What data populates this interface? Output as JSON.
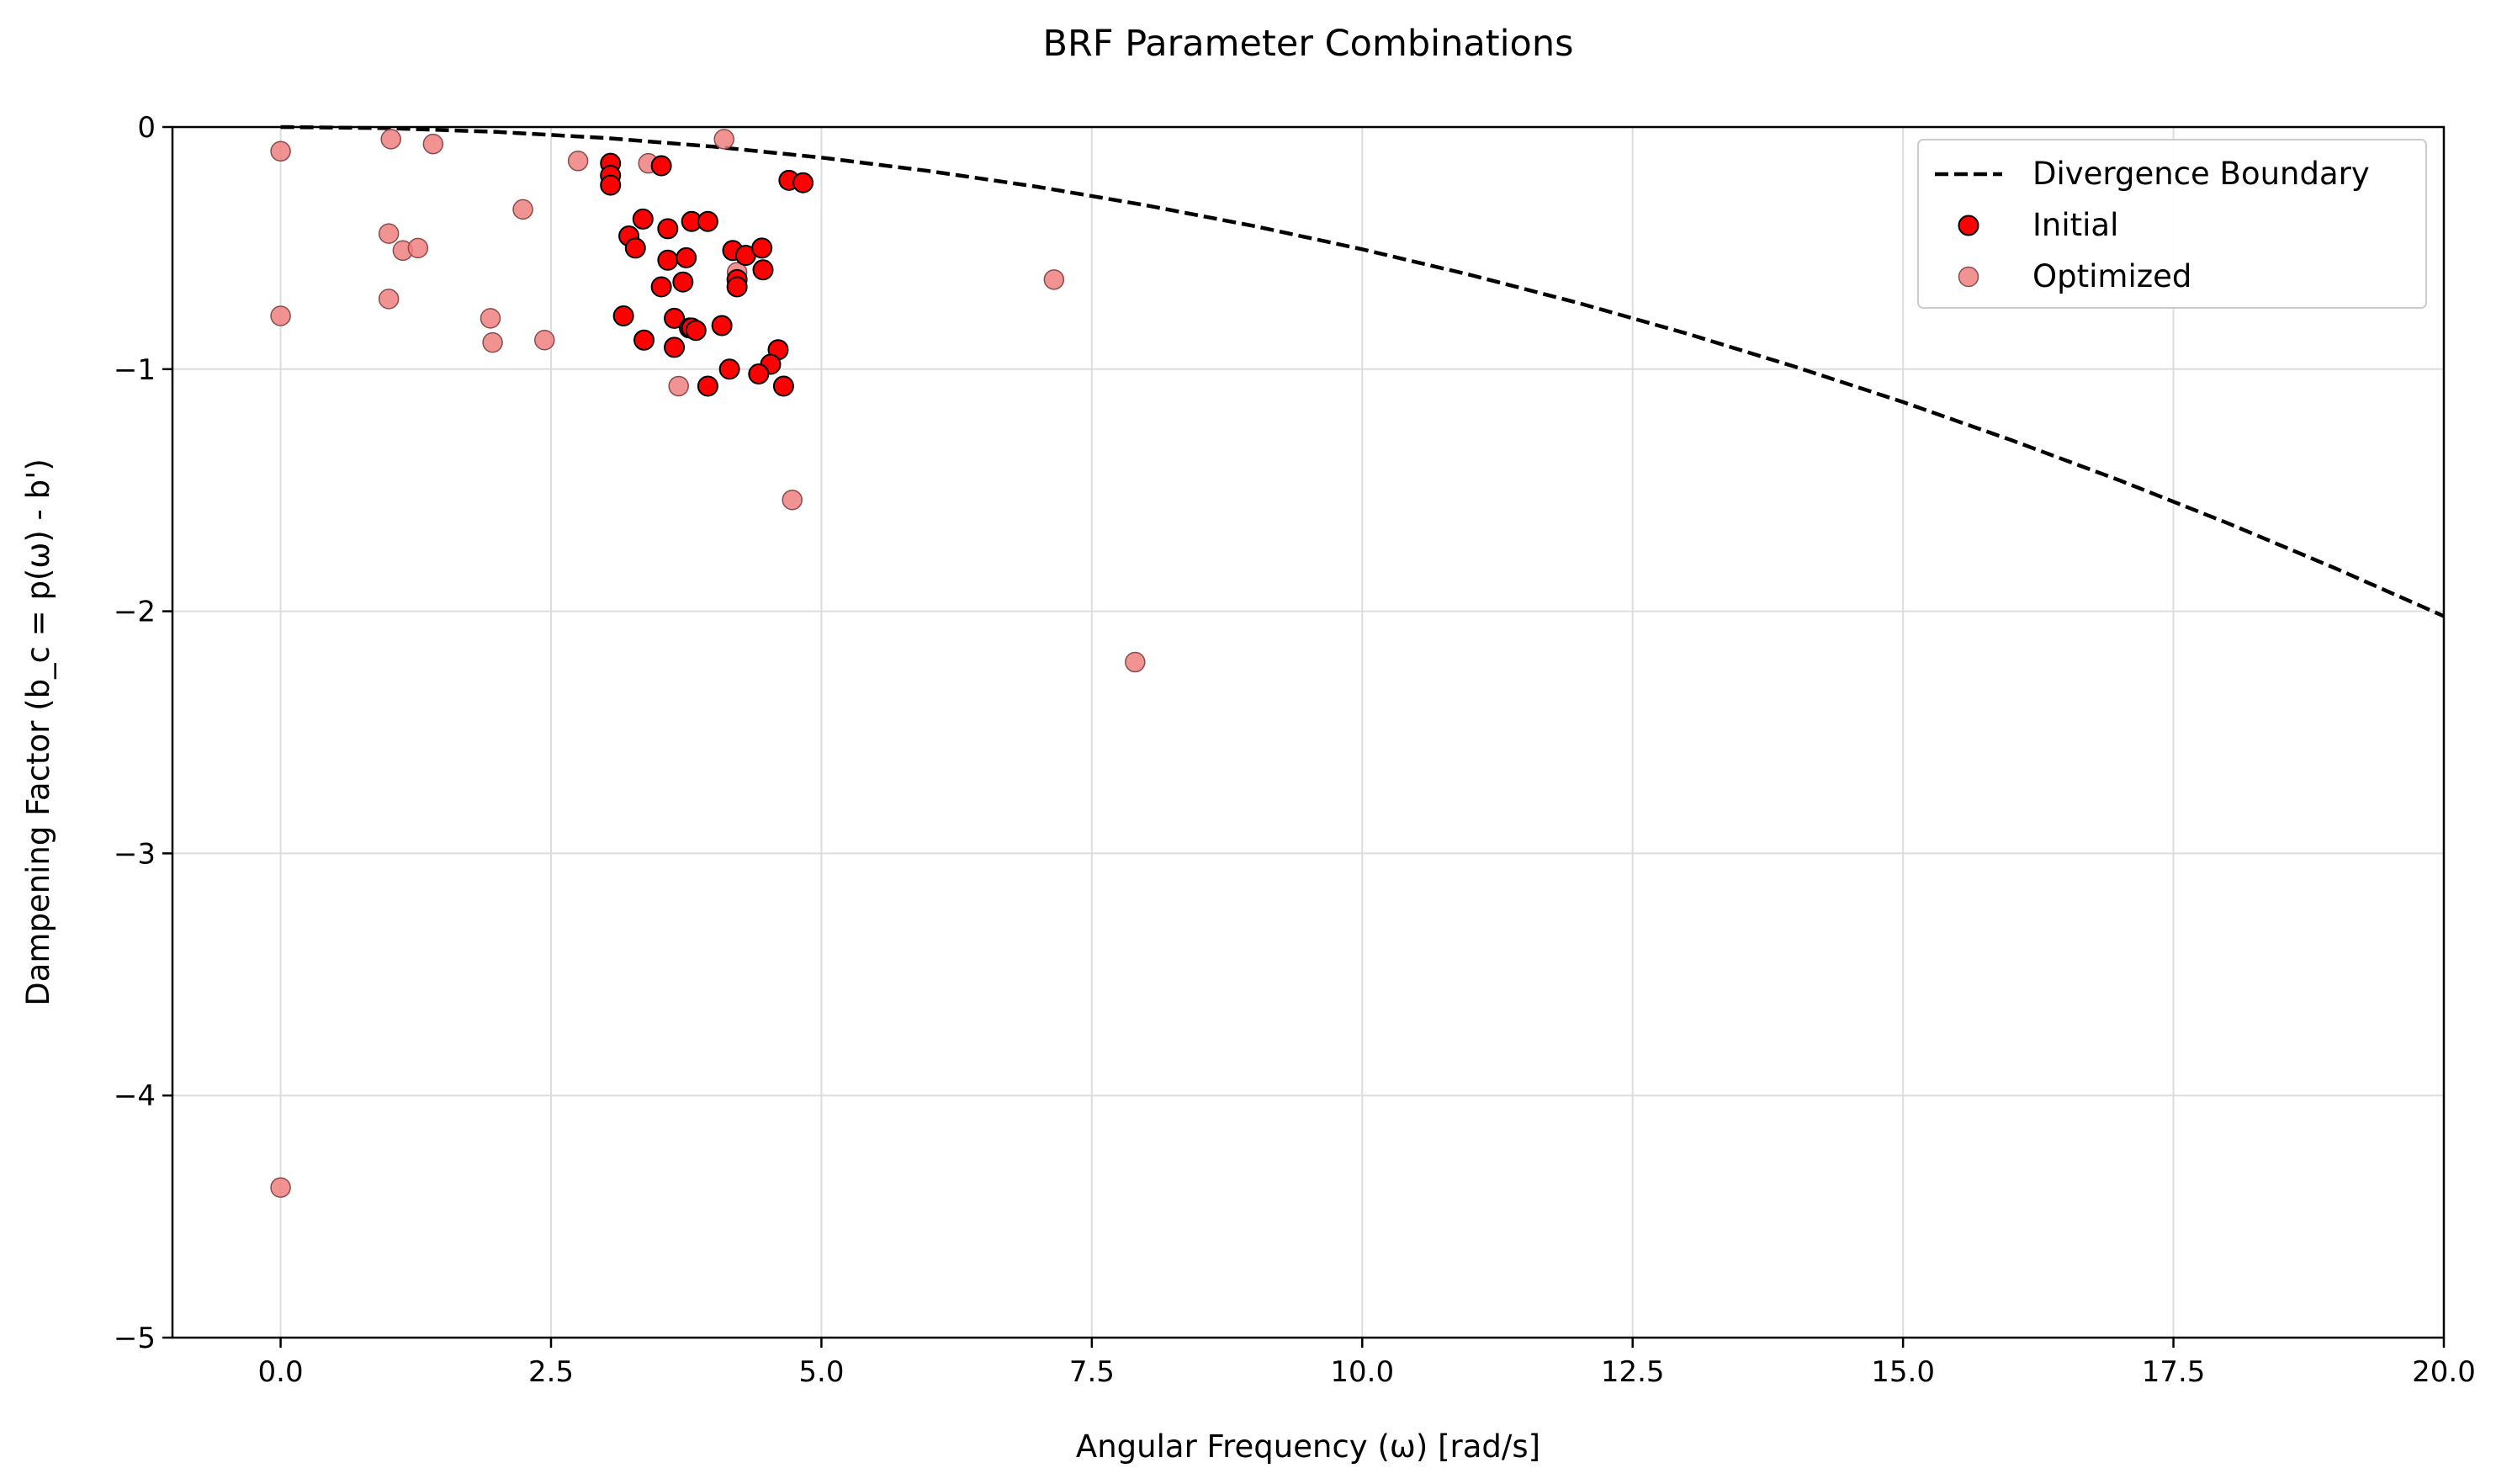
{
  "chart_data": {
    "type": "scatter",
    "title": "BRF Parameter Combinations",
    "xlabel": "Angular Frequency (ω) [rad/s]",
    "ylabel": "Dampening Factor (b_c = p(ω) - b')",
    "xlim": [
      -1.0,
      20.0
    ],
    "ylim": [
      -5.0,
      0.0
    ],
    "xticks": [
      0.0,
      2.5,
      5.0,
      7.5,
      10.0,
      12.5,
      15.0,
      17.5,
      20.0
    ],
    "xtick_labels": [
      "0.0",
      "2.5",
      "5.0",
      "7.5",
      "10.0",
      "12.5",
      "15.0",
      "17.5",
      "20.0"
    ],
    "yticks": [
      0,
      -1,
      -2,
      -3,
      -4,
      -5
    ],
    "ytick_labels": [
      "0",
      "−1",
      "−2",
      "−3",
      "−4",
      "−5"
    ],
    "grid": true,
    "legend_position": "top-right",
    "legend": [
      {
        "label": "Divergence Boundary",
        "kind": "line",
        "color": "#000000",
        "style": "dashed"
      },
      {
        "label": "Initial",
        "kind": "marker",
        "color": "#ff0000"
      },
      {
        "label": "Optimized",
        "kind": "marker",
        "color": "#f08080"
      }
    ],
    "boundary": {
      "name": "Divergence Boundary",
      "x": [
        0,
        1,
        2,
        3,
        4,
        5,
        6,
        7,
        8,
        9,
        10,
        11,
        12,
        13,
        14,
        15,
        16,
        17,
        18,
        19,
        20
      ],
      "y": [
        0.0,
        -0.005,
        -0.02,
        -0.045,
        -0.081,
        -0.126,
        -0.182,
        -0.247,
        -0.323,
        -0.409,
        -0.505,
        -0.611,
        -0.727,
        -0.853,
        -0.99,
        -1.136,
        -1.293,
        -1.459,
        -1.636,
        -1.823,
        -2.02
      ],
      "color": "#000000"
    },
    "series": [
      {
        "name": "Initial",
        "color": "#ff0000",
        "points": [
          [
            3.05,
            -0.15
          ],
          [
            3.05,
            -0.2
          ],
          [
            3.05,
            -0.24
          ],
          [
            3.52,
            -0.16
          ],
          [
            4.7,
            -0.22
          ],
          [
            4.83,
            -0.23
          ],
          [
            3.35,
            -0.38
          ],
          [
            3.8,
            -0.39
          ],
          [
            3.95,
            -0.39
          ],
          [
            3.22,
            -0.45
          ],
          [
            3.28,
            -0.5
          ],
          [
            3.58,
            -0.42
          ],
          [
            3.58,
            -0.55
          ],
          [
            3.75,
            -0.54
          ],
          [
            4.18,
            -0.51
          ],
          [
            4.3,
            -0.53
          ],
          [
            4.45,
            -0.5
          ],
          [
            4.46,
            -0.59
          ],
          [
            3.52,
            -0.66
          ],
          [
            3.72,
            -0.64
          ],
          [
            4.22,
            -0.63
          ],
          [
            4.22,
            -0.66
          ],
          [
            3.17,
            -0.78
          ],
          [
            3.64,
            -0.79
          ],
          [
            3.78,
            -0.83
          ],
          [
            3.8,
            -0.83
          ],
          [
            3.84,
            -0.84
          ],
          [
            4.08,
            -0.82
          ],
          [
            3.36,
            -0.88
          ],
          [
            3.64,
            -0.91
          ],
          [
            4.6,
            -0.92
          ],
          [
            4.53,
            -0.98
          ],
          [
            4.15,
            -1.0
          ],
          [
            4.42,
            -1.02
          ],
          [
            3.95,
            -1.07
          ],
          [
            4.65,
            -1.07
          ]
        ]
      },
      {
        "name": "Optimized",
        "color": "#f08080",
        "points": [
          [
            0.0,
            -0.1
          ],
          [
            1.02,
            -0.05
          ],
          [
            1.41,
            -0.07
          ],
          [
            4.1,
            -0.05
          ],
          [
            2.75,
            -0.14
          ],
          [
            3.4,
            -0.15
          ],
          [
            2.24,
            -0.34
          ],
          [
            1.0,
            -0.44
          ],
          [
            1.13,
            -0.51
          ],
          [
            1.27,
            -0.5
          ],
          [
            1.0,
            -0.71
          ],
          [
            0.0,
            -0.78
          ],
          [
            1.94,
            -0.79
          ],
          [
            1.96,
            -0.89
          ],
          [
            2.44,
            -0.88
          ],
          [
            4.22,
            -0.6
          ],
          [
            7.15,
            -0.63
          ],
          [
            3.68,
            -1.07
          ],
          [
            4.73,
            -1.54
          ],
          [
            7.9,
            -2.21
          ],
          [
            0.0,
            -4.38
          ]
        ]
      }
    ]
  }
}
